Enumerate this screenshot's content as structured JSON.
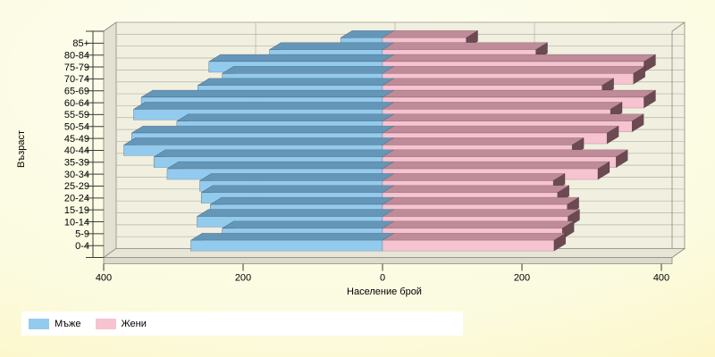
{
  "chart_data": {
    "type": "bar",
    "subtype": "population-pyramid-3d",
    "title": "",
    "xlabel": "Население брой",
    "ylabel": "Възраст",
    "categories": [
      "85+",
      "80-84",
      "75-79",
      "70-74",
      "65-69",
      "60-64",
      "55-59",
      "50-54",
      "45-49",
      "40-44",
      "35-39",
      "30-34",
      "25-29",
      "20-24",
      "15-19",
      "10-14",
      "5-9",
      "0-4"
    ],
    "series": [
      {
        "name": "Мъже",
        "side": "left",
        "colors": {
          "front": "#93cbee",
          "top": "#6496b8",
          "side": "#527f9e"
        },
        "values": [
          60,
          162,
          249,
          230,
          265,
          346,
          357,
          295,
          360,
          371,
          328,
          309,
          262,
          260,
          247,
          266,
          230,
          275
        ]
      },
      {
        "name": "Жени",
        "side": "right",
        "colors": {
          "front": "#f7c3d0",
          "top": "#bf8b98",
          "side": "#6c4a52"
        },
        "values": [
          120,
          220,
          375,
          360,
          315,
          375,
          327,
          358,
          322,
          272,
          335,
          309,
          245,
          251,
          265,
          266,
          258,
          246
        ]
      }
    ],
    "x_ticks": [
      {
        "value": -400,
        "label": "400"
      },
      {
        "value": -200,
        "label": "200"
      },
      {
        "value": 0,
        "label": "0"
      },
      {
        "value": 200,
        "label": "200"
      },
      {
        "value": 400,
        "label": "400"
      }
    ],
    "xlim": [
      -400,
      400
    ],
    "grid": true,
    "legend_position": "bottom-left"
  },
  "legend": {
    "items": [
      {
        "label": "Мъже",
        "color": "#93cbee"
      },
      {
        "label": "Жени",
        "color": "#f7c3d0"
      }
    ]
  },
  "colors": {
    "plot_bg": "#f0efe0",
    "wall": "#e2e1d2",
    "floor": "#e6e5d6",
    "floor_bevel": "#dbdacb",
    "grid": "#b4b3a6",
    "frame": "#8b8b80",
    "axis": "#3c3c38",
    "legend_bg": "#ffffff",
    "text": "#000000"
  }
}
